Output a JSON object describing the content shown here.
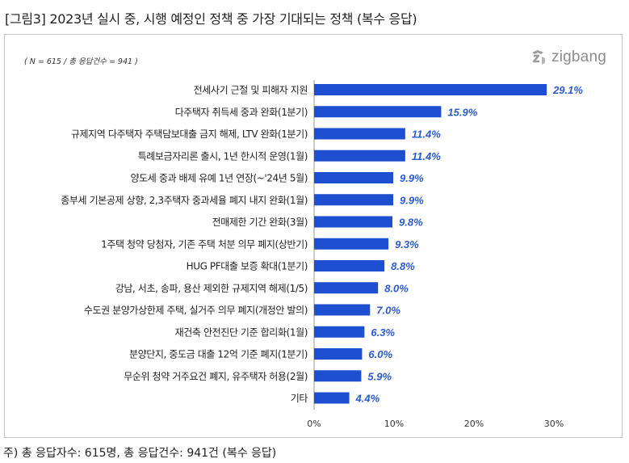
{
  "title": "[그림3] 2023년 실시 중, 시행 예정인 정책 중 가장 기대되는 정책 (복수 응답)",
  "note": "( N = 615 / 총 응답건수 = 941 )",
  "brand": {
    "name": "zigbang",
    "icon": "zigbang-logo-icon",
    "color": "#8c8c8c"
  },
  "footnote": "주) 총 응답자수: 615명, 총 응답건수: 941건 (복수 응답)",
  "colors": {
    "bar": "#1f4fd1",
    "value_label": "#2a5bd7",
    "axis": "#999999"
  },
  "chart_data": {
    "type": "bar",
    "orientation": "horizontal",
    "categories": [
      "전세사기 근절 및 피해자 지원",
      "다주택자 취득세 중과 완화(1분기)",
      "규제지역 다주택자 주택담보대출 금지 해제, LTV 완화(1분기)",
      "특례보금자리론 출시, 1년 한시적 운영(1월)",
      "양도세 중과 배제 유예 1년 연장(~'24년 5월)",
      "종부세 기본공제 상향, 2,3주택자 중과세율 폐지 내지 완화(1월)",
      "전매제한 기간 완화(3월)",
      "1주택 청약 당첨자, 기존 주택 처분 의무 폐지(상반기)",
      "HUG PF대출 보증 확대(1분기)",
      "강남, 서초, 송파, 용산 제외한 규제지역 해제(1/5)",
      "수도권 분양가상한제 주택, 실거주 의무 폐지(개정안 발의)",
      "재건축 안전진단 기준 합리화(1월)",
      "분양단지, 중도금 대출 12억 기준 폐지(1분기)",
      "무순위 청약 거주요건 폐지, 유주택자 허용(2월)",
      "기타"
    ],
    "values": [
      29.1,
      15.9,
      11.4,
      11.4,
      9.9,
      9.9,
      9.8,
      9.3,
      8.8,
      8.0,
      7.0,
      6.3,
      6.0,
      5.9,
      4.4
    ],
    "value_labels": [
      "29.1%",
      "15.9%",
      "11.4%",
      "11.4%",
      "9.9%",
      "9.9%",
      "9.8%",
      "9.3%",
      "8.8%",
      "8.0%",
      "7.0%",
      "6.3%",
      "6.0%",
      "5.9%",
      "4.4%"
    ],
    "xlim": [
      0,
      30
    ],
    "xticks": [
      0,
      10,
      20,
      30
    ],
    "xtick_labels": [
      "0%",
      "10%",
      "20%",
      "30%"
    ],
    "grid": false,
    "legend": "none"
  }
}
